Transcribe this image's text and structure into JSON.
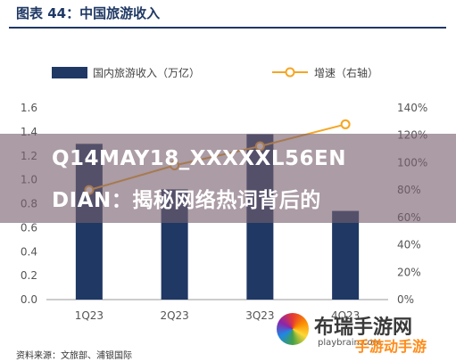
{
  "title": "图表 44：中国旅游收入",
  "source": "资料来源：文旅部、浦银国际",
  "overlay": {
    "line1": "Q14MAY18_XXXXXL56EN",
    "line2": "DIAN：揭秘网络热词背后的"
  },
  "watermark": {
    "name": "布瑞手游网",
    "domain": "playbrain.com",
    "badge": "手游动手游"
  },
  "colors": {
    "bar": "#1f3864",
    "line": "#f5a623",
    "text": "#333333"
  },
  "chart_data": {
    "type": "bar",
    "categories": [
      "1Q23",
      "2Q23",
      "3Q23",
      "4Q23"
    ],
    "series": [
      {
        "name": "国内旅游收入（万亿）",
        "type": "bar",
        "axis": "left",
        "values": [
          1.3,
          0.92,
          1.38,
          0.74
        ]
      },
      {
        "name": "增速（右轴）",
        "type": "line",
        "axis": "right",
        "values": [
          80,
          98,
          112,
          128
        ]
      }
    ],
    "left_axis": {
      "min": 0,
      "max": 1.6,
      "ticks": [
        "0.0",
        "0.2",
        "0.4",
        "0.6",
        "0.8",
        "1.0",
        "1.2",
        "1.4",
        "1.6"
      ]
    },
    "right_axis": {
      "min": 0,
      "max": 140,
      "ticks": [
        "0%",
        "20%",
        "40%",
        "60%",
        "80%",
        "100%",
        "120%",
        "140%"
      ]
    },
    "legend_position": "top",
    "grid": false
  }
}
